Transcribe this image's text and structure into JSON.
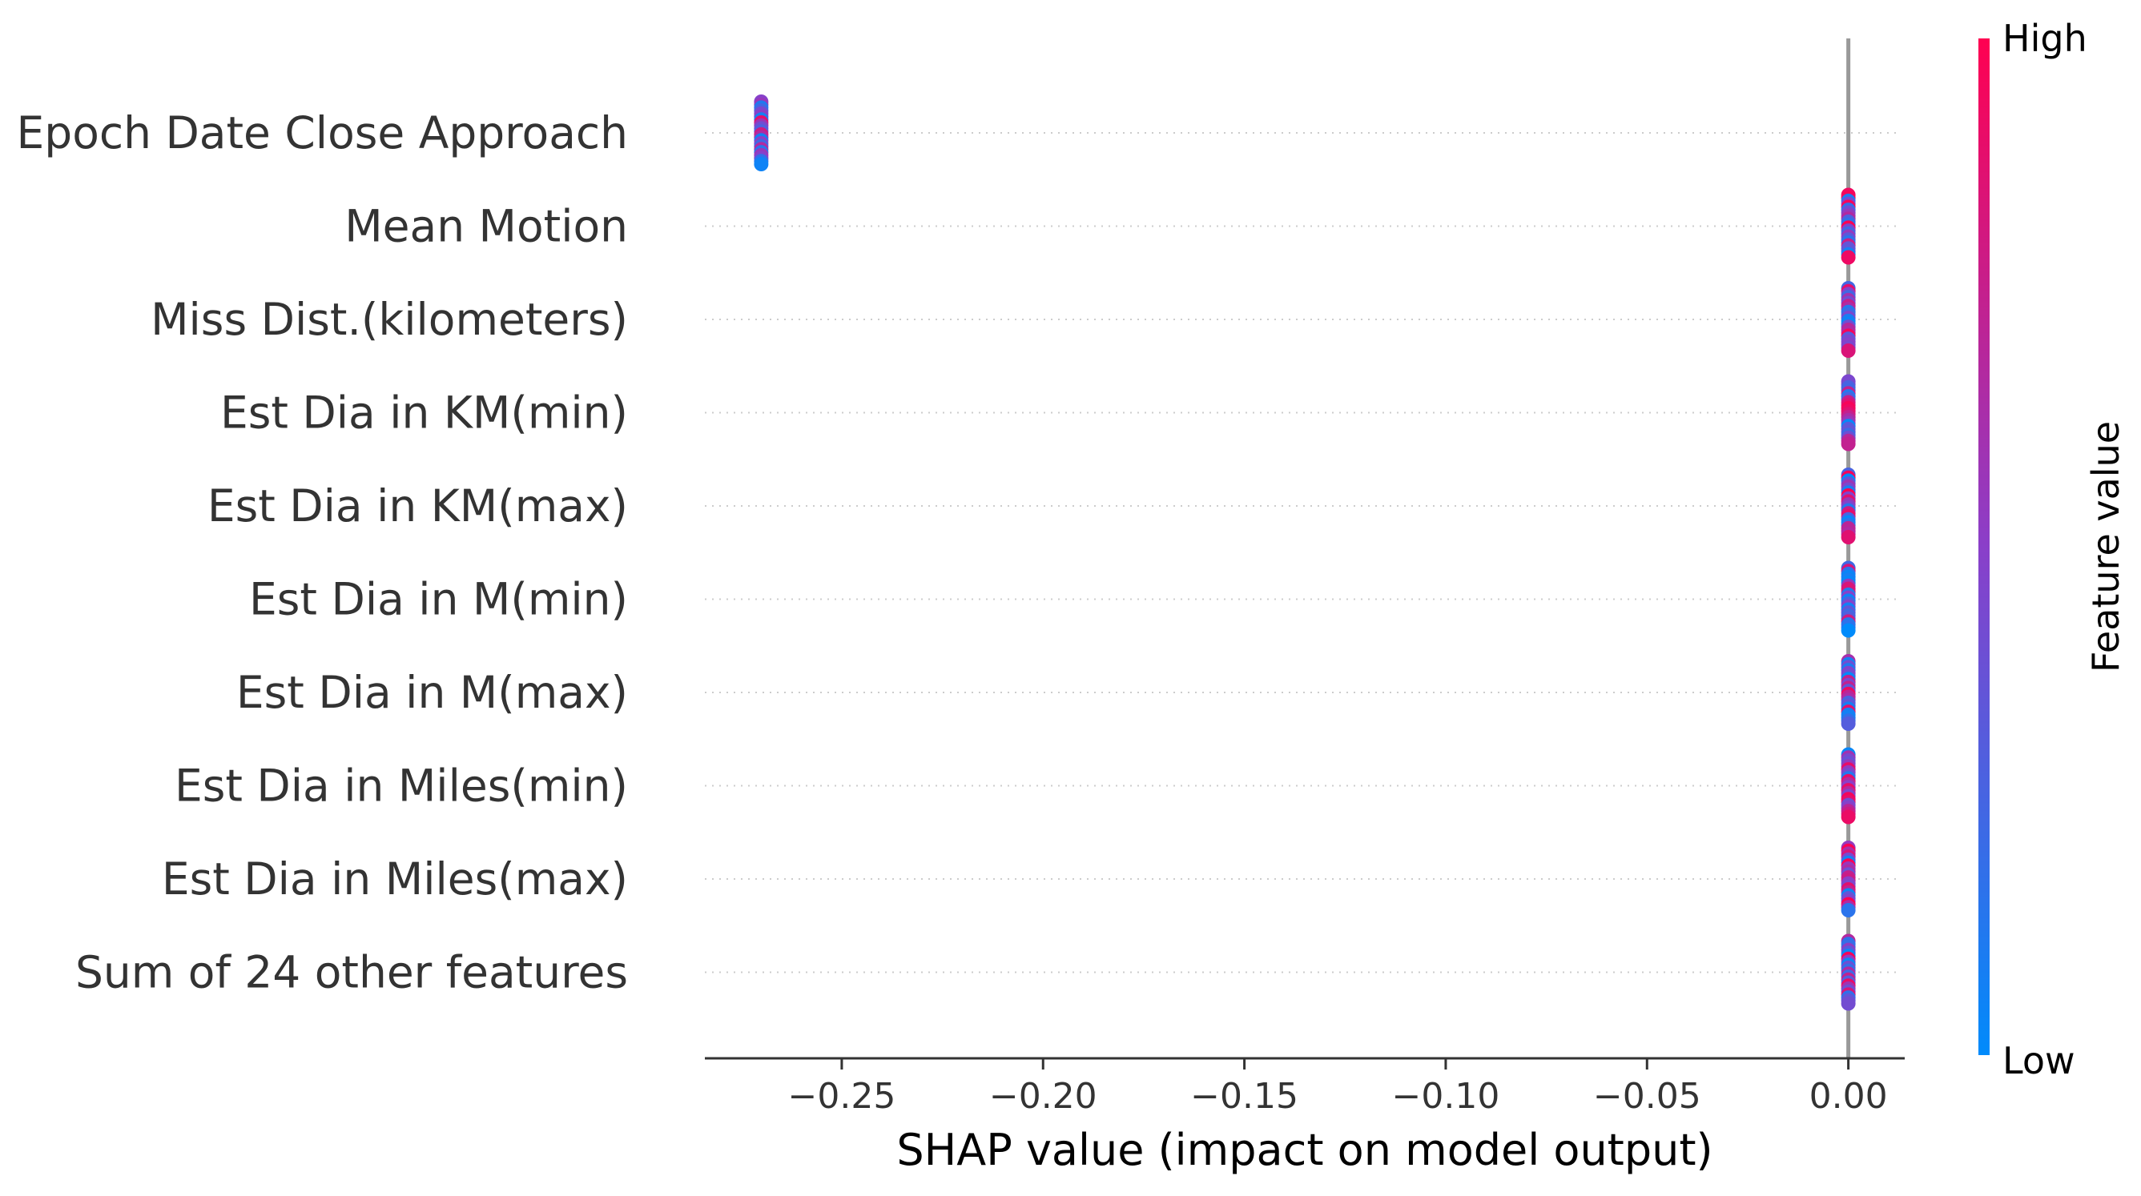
{
  "chart_data": {
    "type": "scatter",
    "subtype": "shap-beeswarm",
    "title": "",
    "xlabel": "SHAP value (impact on model output)",
    "xlim": [
      -0.284,
      0.014
    ],
    "x_ticks": [
      -0.25,
      -0.2,
      -0.15,
      -0.1,
      -0.05,
      0.0
    ],
    "x_tick_labels": [
      "−0.25",
      "−0.20",
      "−0.15",
      "−0.10",
      "−0.05",
      "0.00"
    ],
    "features": [
      "Epoch Date Close Approach",
      "Mean Motion",
      "Miss Dist.(kilometers)",
      "Est Dia in KM(min)",
      "Est Dia in KM(max)",
      "Est Dia in M(min)",
      "Est Dia in M(max)",
      "Est Dia in Miles(min)",
      "Est Dia in Miles(max)",
      "Sum of 24 other features"
    ],
    "feature_shap_center": [
      -0.27,
      0.0,
      0.0,
      0.0,
      0.0,
      0.0,
      0.0,
      0.0,
      0.0,
      0.0
    ],
    "colorbar": {
      "title": "Feature value",
      "high_label": "High",
      "low_label": "Low",
      "low_color": "#008bfb",
      "mid_color": "#8a3fc9",
      "high_color": "#ff0051"
    },
    "zero_line_color": "#999999",
    "grid": "horizontal dotted"
  }
}
